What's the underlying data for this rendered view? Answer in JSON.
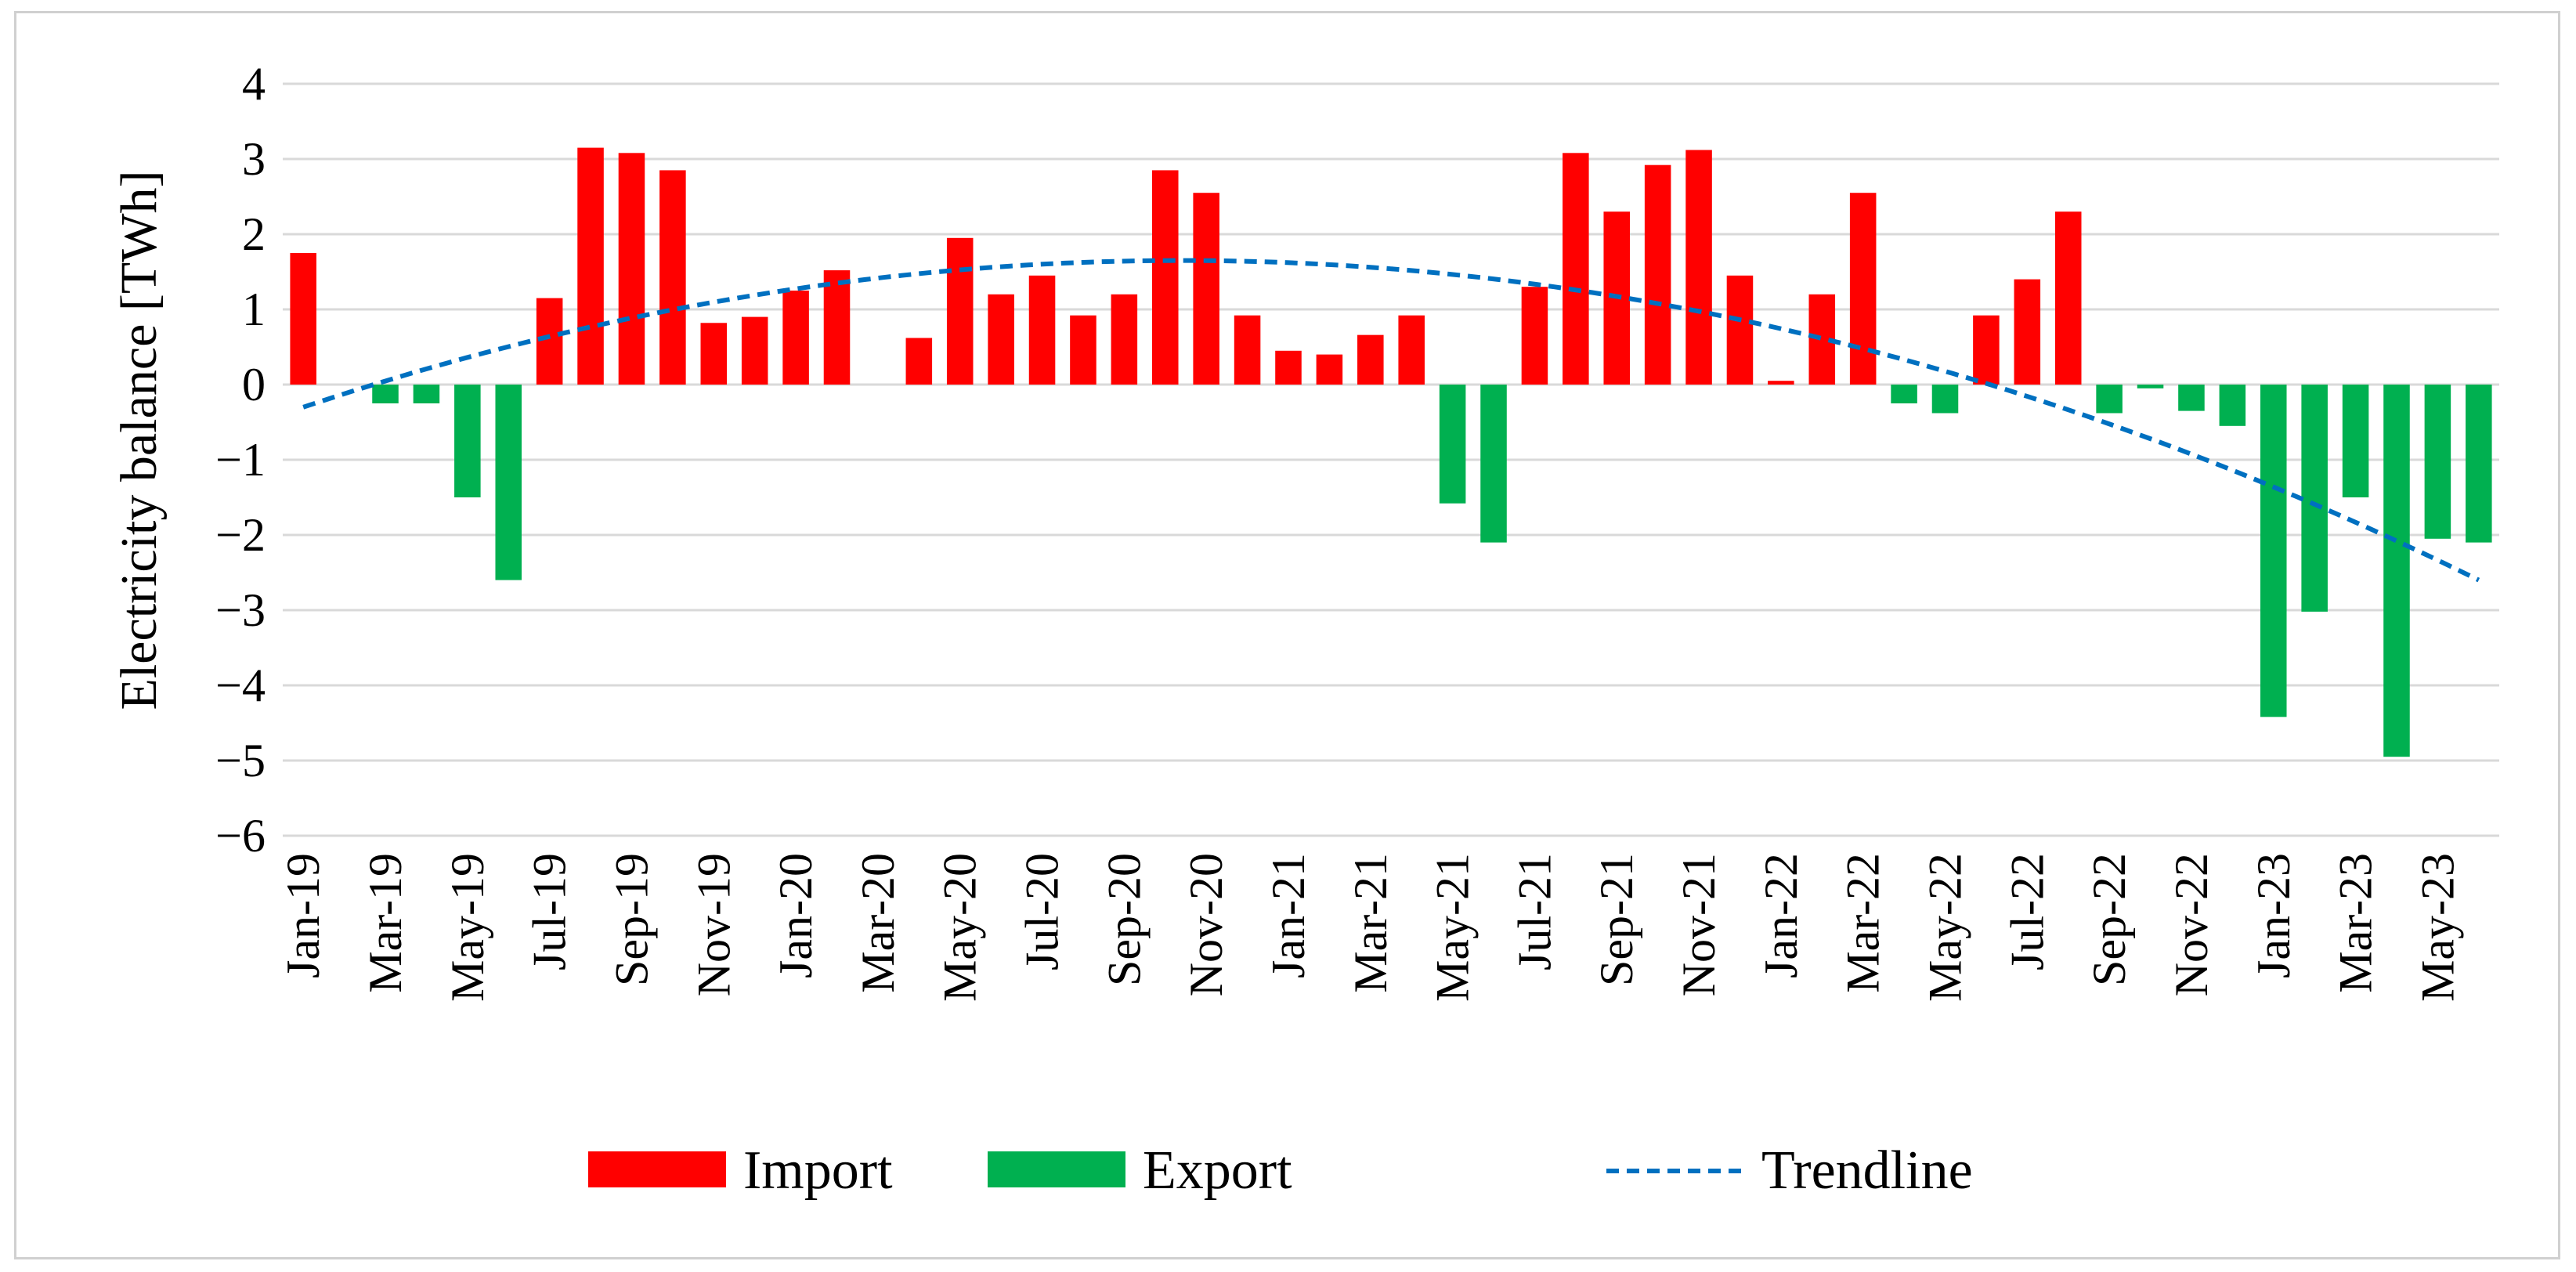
{
  "chart_data": {
    "type": "bar",
    "title": "",
    "xlabel": "",
    "ylabel": "Electricity balance [TWh]",
    "ylim": [
      -6,
      4
    ],
    "yticks": [
      4,
      3,
      2,
      1,
      0,
      -1,
      -2,
      -3,
      -4,
      -5,
      -6
    ],
    "ytick_labels": [
      "4",
      "3",
      "2",
      "1",
      "0",
      "−1",
      "−2",
      "−3",
      "−4",
      "−5",
      "−6"
    ],
    "grid": true,
    "legend_position": "bottom",
    "categories": [
      "Jan-19",
      "Feb-19",
      "Mar-19",
      "Apr-19",
      "May-19",
      "Jun-19",
      "Jul-19",
      "Aug-19",
      "Sep-19",
      "Oct-19",
      "Nov-19",
      "Dec-19",
      "Jan-20",
      "Feb-20",
      "Mar-20",
      "Apr-20",
      "May-20",
      "Jun-20",
      "Jul-20",
      "Aug-20",
      "Sep-20",
      "Oct-20",
      "Nov-20",
      "Dec-20",
      "Jan-21",
      "Feb-21",
      "Mar-21",
      "Apr-21",
      "May-21",
      "Jun-21",
      "Jul-21",
      "Aug-21",
      "Sep-21",
      "Oct-21",
      "Nov-21",
      "Dec-21",
      "Jan-22",
      "Feb-22",
      "Mar-22",
      "Apr-22",
      "May-22",
      "Jun-22",
      "Jul-22",
      "Aug-22",
      "Sep-22",
      "Oct-22",
      "Nov-22",
      "Dec-22",
      "Jan-23",
      "Feb-23",
      "Mar-23",
      "Apr-23",
      "May-23",
      "Jun-23"
    ],
    "tick_labels_shown": [
      "Jan-19",
      "Mar-19",
      "May-19",
      "Jul-19",
      "Sep-19",
      "Nov-19",
      "Jan-20",
      "Mar-20",
      "May-20",
      "Jul-20",
      "Sep-20",
      "Nov-20",
      "Jan-21",
      "Mar-21",
      "May-21",
      "Jul-21",
      "Sep-21",
      "Nov-21",
      "Jan-22",
      "Mar-22",
      "May-22",
      "Jul-22",
      "Sep-22",
      "Nov-22",
      "Jan-23",
      "Mar-23",
      "May-23"
    ],
    "values": [
      1.75,
      0.0,
      -0.25,
      -0.25,
      -1.5,
      -2.6,
      1.15,
      3.15,
      3.08,
      2.85,
      0.82,
      0.9,
      1.25,
      1.52,
      0.0,
      0.62,
      1.95,
      1.2,
      1.45,
      0.92,
      1.2,
      2.85,
      2.55,
      0.92,
      0.45,
      0.4,
      0.66,
      0.92,
      -1.58,
      -2.1,
      1.3,
      3.08,
      2.3,
      2.92,
      3.12,
      1.45,
      0.05,
      1.2,
      2.55,
      -0.25,
      -0.38,
      0.92,
      1.4,
      2.3,
      -0.38,
      -0.05,
      -0.35,
      -0.55,
      -4.42,
      -3.02,
      -1.5,
      -4.95,
      -2.05,
      -2.1
    ],
    "series": [
      {
        "name": "Import",
        "color": "#ff0000",
        "rule": "value > 0"
      },
      {
        "name": "Export",
        "color": "#00b050",
        "rule": "value < 0"
      },
      {
        "name": "Trendline",
        "color": "#0070c0",
        "style": "dashed",
        "type": "polynomial-2",
        "start_value": -0.3,
        "peak_value": 1.65,
        "end_value": -2.6
      }
    ]
  }
}
